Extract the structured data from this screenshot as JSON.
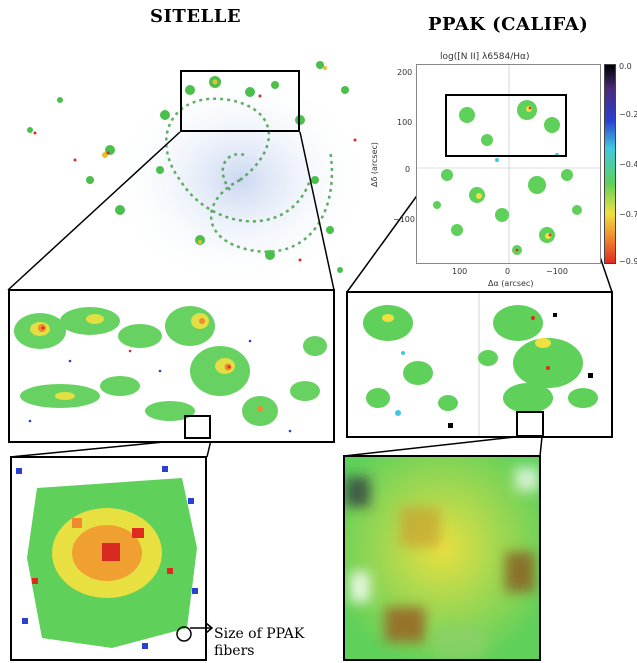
{
  "left": {
    "title": "SITELLE",
    "annotation": "Size of PPAK fibers"
  },
  "right": {
    "title": "PPAK (CALIFA)",
    "plot_title": "log([N II] λ6584/Hα)",
    "ylabel": "Δδ (arcsec)",
    "xlabel": "Δα (arcsec)",
    "xticks": [
      "100",
      "0",
      "−100"
    ],
    "yticks": [
      "200",
      "100",
      "0",
      "−100"
    ],
    "colorbar_ticks": [
      "0.0",
      "−0.2",
      "−0.4",
      "−0.7",
      "−0.9"
    ]
  },
  "colors": {
    "green": "#5fd05a",
    "yellow": "#f0e040",
    "orange": "#f08a30",
    "red": "#e02a20",
    "blue": "#2a40d0",
    "cyan": "#40c8e0"
  }
}
